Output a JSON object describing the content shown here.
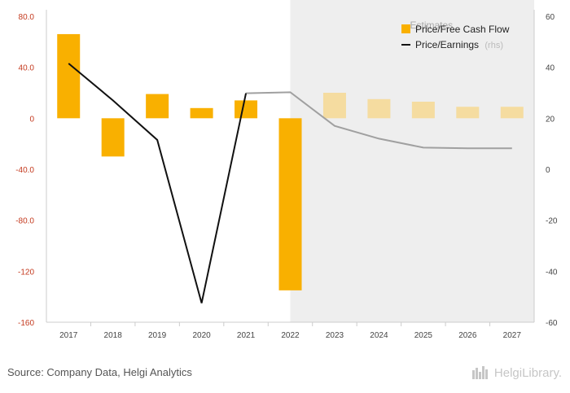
{
  "chart_data": {
    "type": "bar+line",
    "categories": [
      "2017",
      "2018",
      "2019",
      "2020",
      "2021",
      "2022",
      "2023",
      "2024",
      "2025",
      "2026",
      "2027"
    ],
    "estimate_start_index": 6,
    "estimates_label": "Estimates",
    "series": [
      {
        "name": "Price/Free Cash Flow",
        "type": "bar",
        "axis": "left",
        "color": "#f9b000",
        "estimate_color": "#f5dca0",
        "values": [
          66,
          -30,
          19,
          8,
          14,
          -135,
          20,
          15,
          13,
          9,
          9
        ]
      },
      {
        "name": "Price/Earnings",
        "axis_note": "(rhs)",
        "type": "line",
        "axis": "right",
        "color": "#111111",
        "estimate_color": "#a0a0a0",
        "values": [
          41.5,
          27,
          11.5,
          -52.5,
          29.8,
          30.2,
          17,
          12,
          8.5,
          8.2,
          8.2
        ]
      }
    ],
    "y_left": {
      "ylim": [
        -160,
        80
      ],
      "ticks": [
        80,
        40,
        0,
        -40,
        -80,
        -120,
        -160
      ],
      "tick_labels": [
        "80.0",
        "40.0",
        "0",
        "-40.0",
        "-80.0",
        "-120",
        "-160"
      ]
    },
    "y_right": {
      "ylim": [
        -60,
        60
      ],
      "ticks": [
        60,
        40,
        20,
        0,
        -20,
        -40,
        -60
      ],
      "tick_labels": [
        "60",
        "40",
        "20",
        "0",
        "-20",
        "-40",
        "-60"
      ]
    },
    "grid": false,
    "legend_position": "top-right"
  },
  "footer": {
    "source": "Source: Company Data, Helgi Analytics",
    "logo_text": "HelgiLibrary."
  }
}
